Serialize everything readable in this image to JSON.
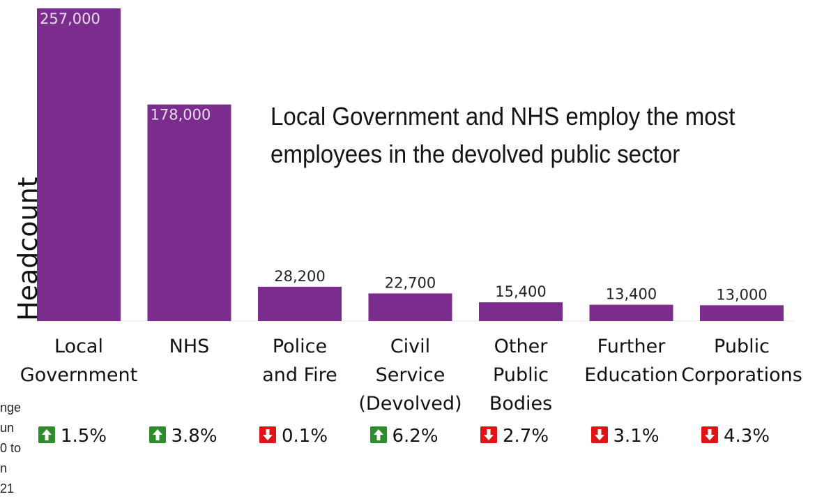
{
  "chart_data": {
    "type": "bar",
    "title": "Local Government and NHS employ the most employees in the devolved public sector",
    "ylabel": "Headcount",
    "xlabel": "",
    "ylim": [
      0,
      257000
    ],
    "categories": [
      "Local Government",
      "NHS",
      "Police and Fire",
      "Civil Service (Devolved)",
      "Other Public Bodies",
      "Further Education",
      "Public Corporations"
    ],
    "values": [
      257000,
      178000,
      28200,
      22700,
      15400,
      13400,
      13000
    ],
    "value_labels": [
      "257,000",
      "178,000",
      "28,200",
      "22,700",
      "15,400",
      "13,400",
      "13,000"
    ],
    "bar_color": "#7b2d8e",
    "changes": [
      {
        "direction": "up",
        "text": "1.5%"
      },
      {
        "direction": "up",
        "text": "3.8%"
      },
      {
        "direction": "down",
        "text": "0.1%"
      },
      {
        "direction": "up",
        "text": "6.2%"
      },
      {
        "direction": "down",
        "text": "2.7%"
      },
      {
        "direction": "down",
        "text": "3.1%"
      },
      {
        "direction": "down",
        "text": "4.3%"
      }
    ],
    "up_color": "#2e8b2e",
    "down_color": "#e01414",
    "legend_fragments": [
      "nge",
      "un",
      "0 to",
      "n",
      "21"
    ]
  },
  "cat_lines": [
    [
      "Local",
      "Government"
    ],
    [
      "NHS"
    ],
    [
      "Police",
      "and Fire"
    ],
    [
      "Civil",
      "Service",
      "(Devolved)"
    ],
    [
      "Other",
      "Public",
      "Bodies"
    ],
    [
      "Further",
      "Education"
    ],
    [
      "Public",
      "Corporations"
    ]
  ],
  "headline_lines": [
    "Local Government and NHS employ the most",
    "employees in the devolved public sector"
  ]
}
